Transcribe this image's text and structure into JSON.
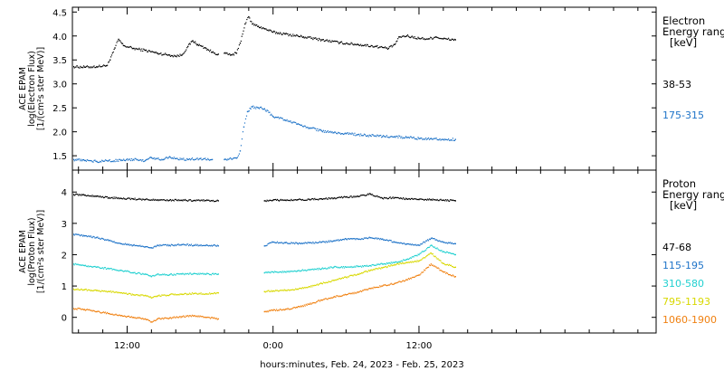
{
  "xlabel": "hours:minutes, Feb. 24, 2023 - Feb. 25, 2023",
  "x_range_hours": [
    7.5,
    55.5
  ],
  "x_ticks": [
    {
      "hour": 12,
      "label": "12:00"
    },
    {
      "hour": 24,
      "label": "0:00"
    },
    {
      "hour": 36,
      "label": "12:00"
    }
  ],
  "data_gap_hours": [
    19.5,
    23.3
  ],
  "chart_data": [
    {
      "type": "scatter",
      "title": "",
      "ylabel_lines": [
        "ACE EPAM",
        "log(Electron Flux)",
        "[1/(cm²s ster MeV)]"
      ],
      "ylim": [
        1.2,
        4.6
      ],
      "yticks": [
        1.5,
        2.0,
        2.5,
        3.0,
        3.5,
        4.0,
        4.5
      ],
      "ytick_labels": [
        "1.5",
        "2.0",
        "2.5",
        "3.0",
        "3.5",
        "4.0",
        "4.5"
      ],
      "legend_title_lines": [
        "Electron",
        "Energy range",
        "[keV]"
      ],
      "series": [
        {
          "name": "38-53",
          "color": "#000000",
          "points": [
            [
              7.6,
              3.36
            ],
            [
              8.5,
              3.35
            ],
            [
              9.5,
              3.36
            ],
            [
              10.3,
              3.38
            ],
            [
              10.6,
              3.5
            ],
            [
              11.0,
              3.75
            ],
            [
              11.3,
              3.93
            ],
            [
              11.7,
              3.8
            ],
            [
              12.5,
              3.74
            ],
            [
              13.5,
              3.7
            ],
            [
              14.5,
              3.64
            ],
            [
              15.5,
              3.6
            ],
            [
              16.0,
              3.58
            ],
            [
              16.5,
              3.6
            ],
            [
              17.0,
              3.78
            ],
            [
              17.4,
              3.9
            ],
            [
              17.8,
              3.82
            ],
            [
              18.5,
              3.74
            ],
            [
              19.0,
              3.66
            ],
            [
              19.5,
              3.62
            ],
            [
              20.0,
              3.64
            ],
            [
              20.5,
              3.6
            ],
            [
              21.0,
              3.64
            ],
            [
              21.3,
              3.85
            ],
            [
              21.7,
              4.25
            ],
            [
              22.0,
              4.4
            ],
            [
              22.3,
              4.25
            ],
            [
              22.8,
              4.2
            ],
            [
              23.3,
              4.15
            ],
            [
              24.0,
              4.08
            ],
            [
              25.0,
              4.04
            ],
            [
              26.5,
              3.98
            ],
            [
              28.0,
              3.92
            ],
            [
              29.5,
              3.86
            ],
            [
              31.0,
              3.82
            ],
            [
              32.5,
              3.78
            ],
            [
              33.5,
              3.74
            ],
            [
              34.0,
              3.82
            ],
            [
              34.4,
              3.98
            ],
            [
              35.0,
              4.0
            ],
            [
              36.0,
              3.95
            ],
            [
              36.8,
              3.94
            ],
            [
              37.4,
              3.98
            ],
            [
              38.0,
              3.94
            ],
            [
              39.0,
              3.92
            ]
          ]
        },
        {
          "name": "175-315",
          "color": "#1e73c8",
          "points": [
            [
              7.6,
              1.42
            ],
            [
              8.5,
              1.4
            ],
            [
              9.5,
              1.38
            ],
            [
              10.5,
              1.4
            ],
            [
              11.5,
              1.4
            ],
            [
              12.5,
              1.42
            ],
            [
              13.5,
              1.4
            ],
            [
              14.0,
              1.46
            ],
            [
              15.0,
              1.42
            ],
            [
              15.5,
              1.48
            ],
            [
              16.0,
              1.44
            ],
            [
              17.0,
              1.42
            ],
            [
              18.0,
              1.44
            ],
            [
              19.0,
              1.42
            ],
            [
              20.0,
              1.42
            ],
            [
              21.0,
              1.45
            ],
            [
              21.3,
              1.6
            ],
            [
              21.6,
              2.1
            ],
            [
              21.9,
              2.42
            ],
            [
              22.3,
              2.52
            ],
            [
              22.8,
              2.5
            ],
            [
              23.3,
              2.48
            ],
            [
              24.0,
              2.32
            ],
            [
              25.0,
              2.24
            ],
            [
              26.0,
              2.16
            ],
            [
              27.0,
              2.08
            ],
            [
              28.0,
              2.02
            ],
            [
              29.0,
              1.98
            ],
            [
              30.0,
              1.96
            ],
            [
              31.0,
              1.94
            ],
            [
              32.0,
              1.92
            ],
            [
              33.0,
              1.9
            ],
            [
              34.0,
              1.9
            ],
            [
              35.0,
              1.88
            ],
            [
              36.0,
              1.86
            ],
            [
              37.0,
              1.86
            ],
            [
              38.0,
              1.84
            ],
            [
              39.0,
              1.84
            ]
          ]
        }
      ]
    },
    {
      "type": "scatter",
      "title": "",
      "ylabel_lines": [
        "ACE EPAM",
        "log(Proton Flux)",
        "[1/(cm²s ster MeV)]"
      ],
      "ylim": [
        -0.5,
        4.7
      ],
      "yticks": [
        0,
        1,
        2,
        3,
        4
      ],
      "ytick_labels": [
        "0",
        "1",
        "2",
        "3",
        "4"
      ],
      "legend_title_lines": [
        "Proton",
        "Energy range",
        "[keV]"
      ],
      "series": [
        {
          "name": "47-68",
          "color": "#000000",
          "points": [
            [
              7.6,
              3.92
            ],
            [
              8.5,
              3.9
            ],
            [
              9.5,
              3.86
            ],
            [
              10.5,
              3.82
            ],
            [
              11.5,
              3.8
            ],
            [
              12.5,
              3.78
            ],
            [
              13.5,
              3.76
            ],
            [
              14.5,
              3.75
            ],
            [
              15.5,
              3.74
            ],
            [
              16.5,
              3.74
            ],
            [
              17.5,
              3.73
            ],
            [
              18.5,
              3.73
            ],
            [
              19.5,
              3.72
            ],
            [
              23.3,
              3.72
            ],
            [
              24.0,
              3.74
            ],
            [
              25.0,
              3.74
            ],
            [
              26.0,
              3.75
            ],
            [
              27.0,
              3.76
            ],
            [
              28.0,
              3.78
            ],
            [
              29.0,
              3.8
            ],
            [
              30.0,
              3.84
            ],
            [
              31.0,
              3.86
            ],
            [
              32.0,
              3.94
            ],
            [
              33.0,
              3.8
            ],
            [
              34.0,
              3.82
            ],
            [
              35.0,
              3.78
            ],
            [
              36.0,
              3.76
            ],
            [
              37.0,
              3.76
            ],
            [
              38.0,
              3.74
            ],
            [
              39.0,
              3.72
            ]
          ]
        },
        {
          "name": "115-195",
          "color": "#1e73c8",
          "points": [
            [
              7.6,
              2.65
            ],
            [
              8.5,
              2.6
            ],
            [
              9.5,
              2.55
            ],
            [
              10.5,
              2.45
            ],
            [
              11.5,
              2.35
            ],
            [
              12.5,
              2.3
            ],
            [
              13.5,
              2.25
            ],
            [
              14.0,
              2.22
            ],
            [
              14.5,
              2.3
            ],
            [
              15.5,
              2.3
            ],
            [
              16.5,
              2.32
            ],
            [
              17.5,
              2.3
            ],
            [
              18.5,
              2.3
            ],
            [
              19.5,
              2.28
            ],
            [
              23.3,
              2.28
            ],
            [
              24.0,
              2.4
            ],
            [
              25.0,
              2.38
            ],
            [
              26.0,
              2.36
            ],
            [
              27.0,
              2.38
            ],
            [
              28.0,
              2.4
            ],
            [
              29.0,
              2.44
            ],
            [
              30.0,
              2.5
            ],
            [
              31.0,
              2.5
            ],
            [
              32.0,
              2.54
            ],
            [
              33.0,
              2.5
            ],
            [
              34.0,
              2.4
            ],
            [
              35.0,
              2.34
            ],
            [
              36.0,
              2.3
            ],
            [
              37.0,
              2.52
            ],
            [
              38.0,
              2.4
            ],
            [
              39.0,
              2.35
            ]
          ]
        },
        {
          "name": "310-580",
          "color": "#20d0d0",
          "points": [
            [
              7.6,
              1.7
            ],
            [
              8.5,
              1.65
            ],
            [
              9.5,
              1.6
            ],
            [
              10.5,
              1.55
            ],
            [
              11.5,
              1.5
            ],
            [
              12.5,
              1.42
            ],
            [
              13.5,
              1.38
            ],
            [
              14.0,
              1.3
            ],
            [
              14.5,
              1.38
            ],
            [
              15.5,
              1.36
            ],
            [
              16.5,
              1.38
            ],
            [
              17.5,
              1.4
            ],
            [
              18.5,
              1.38
            ],
            [
              19.5,
              1.38
            ],
            [
              23.3,
              1.42
            ],
            [
              24.0,
              1.45
            ],
            [
              25.0,
              1.45
            ],
            [
              26.0,
              1.48
            ],
            [
              27.0,
              1.52
            ],
            [
              28.0,
              1.55
            ],
            [
              29.0,
              1.6
            ],
            [
              30.0,
              1.6
            ],
            [
              31.0,
              1.62
            ],
            [
              32.0,
              1.65
            ],
            [
              33.0,
              1.7
            ],
            [
              34.0,
              1.75
            ],
            [
              35.0,
              1.85
            ],
            [
              36.0,
              2.0
            ],
            [
              37.0,
              2.3
            ],
            [
              38.0,
              2.1
            ],
            [
              39.0,
              2.0
            ]
          ]
        },
        {
          "name": "795-1193",
          "color": "#d8d800",
          "points": [
            [
              7.6,
              0.9
            ],
            [
              8.5,
              0.88
            ],
            [
              9.5,
              0.85
            ],
            [
              10.5,
              0.82
            ],
            [
              11.5,
              0.78
            ],
            [
              12.5,
              0.72
            ],
            [
              13.5,
              0.7
            ],
            [
              14.0,
              0.62
            ],
            [
              14.5,
              0.68
            ],
            [
              15.5,
              0.72
            ],
            [
              16.5,
              0.74
            ],
            [
              17.5,
              0.76
            ],
            [
              18.5,
              0.75
            ],
            [
              19.5,
              0.78
            ],
            [
              23.3,
              0.82
            ],
            [
              24.0,
              0.84
            ],
            [
              25.0,
              0.86
            ],
            [
              26.0,
              0.9
            ],
            [
              27.0,
              0.98
            ],
            [
              28.0,
              1.08
            ],
            [
              29.0,
              1.18
            ],
            [
              30.0,
              1.28
            ],
            [
              31.0,
              1.38
            ],
            [
              32.0,
              1.5
            ],
            [
              33.0,
              1.58
            ],
            [
              34.0,
              1.68
            ],
            [
              35.0,
              1.75
            ],
            [
              36.0,
              1.8
            ],
            [
              37.0,
              2.05
            ],
            [
              38.0,
              1.72
            ],
            [
              39.0,
              1.6
            ]
          ]
        },
        {
          "name": "1060-1900",
          "color": "#f08010",
          "points": [
            [
              7.6,
              0.28
            ],
            [
              8.5,
              0.25
            ],
            [
              9.5,
              0.18
            ],
            [
              10.5,
              0.12
            ],
            [
              11.5,
              0.05
            ],
            [
              12.5,
              0.0
            ],
            [
              13.5,
              -0.05
            ],
            [
              14.0,
              -0.15
            ],
            [
              14.5,
              -0.05
            ],
            [
              15.5,
              -0.02
            ],
            [
              16.5,
              0.02
            ],
            [
              17.5,
              0.05
            ],
            [
              18.5,
              0.0
            ],
            [
              19.5,
              -0.05
            ],
            [
              23.3,
              0.18
            ],
            [
              24.0,
              0.22
            ],
            [
              25.0,
              0.25
            ],
            [
              26.0,
              0.32
            ],
            [
              27.0,
              0.42
            ],
            [
              28.0,
              0.55
            ],
            [
              29.0,
              0.65
            ],
            [
              30.0,
              0.72
            ],
            [
              31.0,
              0.8
            ],
            [
              32.0,
              0.92
            ],
            [
              33.0,
              1.0
            ],
            [
              34.0,
              1.08
            ],
            [
              35.0,
              1.2
            ],
            [
              36.0,
              1.35
            ],
            [
              37.0,
              1.7
            ],
            [
              38.0,
              1.45
            ],
            [
              39.0,
              1.3
            ]
          ]
        }
      ]
    }
  ]
}
